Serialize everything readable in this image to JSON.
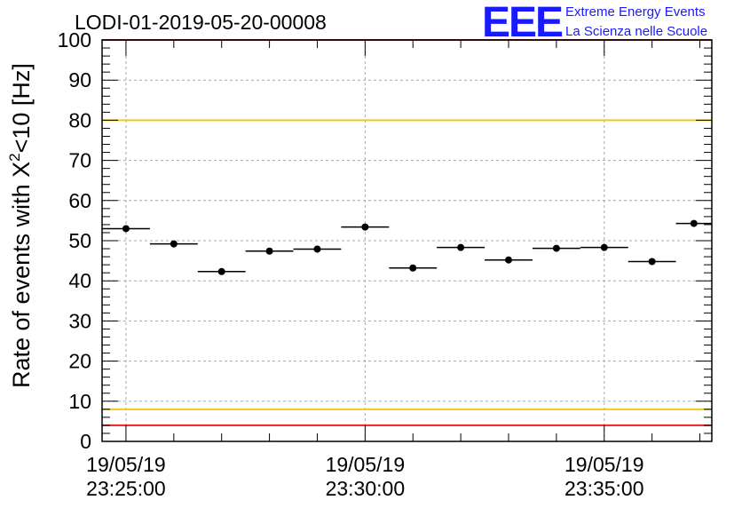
{
  "title": "LODI-01-2019-05-20-00008",
  "logo": {
    "mark": "EEE",
    "line1": "Extreme Energy Events",
    "line2": "La Scienza nelle Scuole",
    "color": "#1a1aff"
  },
  "chart_data": {
    "type": "scatter",
    "ylabel_main": "Rate of events with X",
    "ylabel_sup": "2",
    "ylabel_tail": "<10 [Hz]",
    "ylim": [
      0,
      100
    ],
    "yticks": [
      0,
      10,
      20,
      30,
      40,
      50,
      60,
      70,
      80,
      90,
      100
    ],
    "xlim": [
      "19/05/19 23:24:30",
      "19/05/19 23:37:15"
    ],
    "xticks": [
      {
        "time": "19/05/19 23:25:00",
        "date": "19/05/19",
        "clock": "23:25:00"
      },
      {
        "time": "19/05/19 23:30:00",
        "date": "19/05/19",
        "clock": "23:30:00"
      },
      {
        "time": "19/05/19 23:35:00",
        "date": "19/05/19",
        "clock": "23:35:00"
      }
    ],
    "grid": true,
    "points": [
      {
        "start": "19/05/19 23:24:30",
        "end": "19/05/19 23:25:30",
        "y": 53.0
      },
      {
        "start": "19/05/19 23:25:30",
        "end": "19/05/19 23:26:30",
        "y": 49.2
      },
      {
        "start": "19/05/19 23:26:30",
        "end": "19/05/19 23:27:30",
        "y": 42.3
      },
      {
        "start": "19/05/19 23:27:30",
        "end": "19/05/19 23:28:30",
        "y": 47.4
      },
      {
        "start": "19/05/19 23:28:30",
        "end": "19/05/19 23:29:30",
        "y": 47.9
      },
      {
        "start": "19/05/19 23:29:30",
        "end": "19/05/19 23:30:30",
        "y": 53.4
      },
      {
        "start": "19/05/19 23:30:30",
        "end": "19/05/19 23:31:30",
        "y": 43.2
      },
      {
        "start": "19/05/19 23:31:30",
        "end": "19/05/19 23:32:30",
        "y": 48.3
      },
      {
        "start": "19/05/19 23:32:30",
        "end": "19/05/19 23:33:30",
        "y": 45.2
      },
      {
        "start": "19/05/19 23:33:30",
        "end": "19/05/19 23:34:30",
        "y": 48.1
      },
      {
        "start": "19/05/19 23:34:30",
        "end": "19/05/19 23:35:30",
        "y": 48.3
      },
      {
        "start": "19/05/19 23:35:30",
        "end": "19/05/19 23:36:30",
        "y": 44.8
      },
      {
        "start": "19/05/19 23:36:30",
        "end": "19/05/19 23:37:15",
        "y": 54.3
      }
    ],
    "reference_lines": [
      {
        "y": 100,
        "color": "#e8202a"
      },
      {
        "y": 80,
        "color": "#f2c81a"
      },
      {
        "y": 8,
        "color": "#f2c81a"
      },
      {
        "y": 4,
        "color": "#e8202a"
      }
    ]
  }
}
